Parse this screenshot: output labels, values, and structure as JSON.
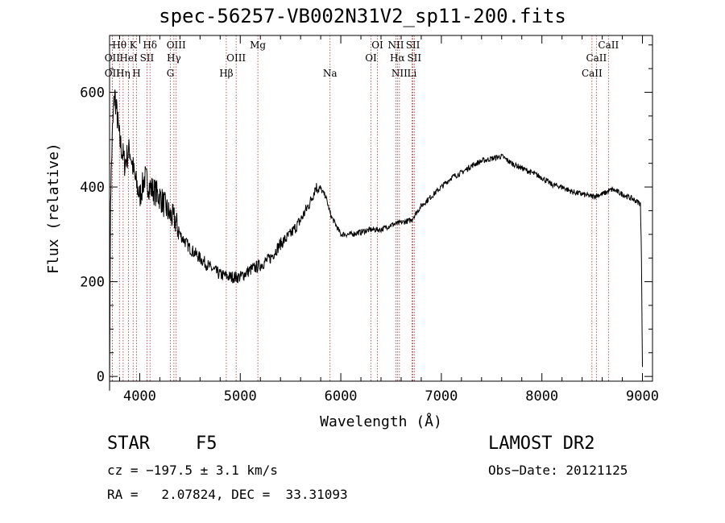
{
  "chart_data": {
    "type": "line",
    "title": "spec-56257-VB002N31V2_sp11-200.fits",
    "xlabel": "Wavelength (Å)",
    "ylabel": "Flux (relative)",
    "xlim": [
      3700,
      9100
    ],
    "ylim": [
      -10,
      720
    ],
    "xticks": [
      4000,
      5000,
      6000,
      7000,
      8000,
      9000
    ],
    "yticks": [
      0,
      200,
      400,
      600
    ],
    "x_minor_step": 200,
    "y_minor_step": 50,
    "grid": false,
    "series": [
      {
        "name": "flux",
        "x": [
          3700,
          3705,
          3710,
          3720,
          3730,
          3740,
          3750,
          3760,
          3770,
          3780,
          3790,
          3800,
          3850,
          3900,
          3950,
          4000,
          4050,
          4100,
          4150,
          4200,
          4250,
          4300,
          4350,
          4400,
          4500,
          4600,
          4700,
          4800,
          4900,
          5000,
          5100,
          5200,
          5300,
          5400,
          5500,
          5600,
          5700,
          5750,
          5800,
          5850,
          5900,
          5950,
          6000,
          6100,
          6200,
          6300,
          6400,
          6500,
          6600,
          6700,
          6800,
          6900,
          7000,
          7100,
          7200,
          7300,
          7400,
          7500,
          7600,
          7700,
          7800,
          7900,
          8000,
          8100,
          8200,
          8300,
          8400,
          8500,
          8600,
          8700,
          8800,
          8900,
          8980,
          8990,
          9000
        ],
        "y": [
          0,
          150,
          380,
          450,
          520,
          560,
          600,
          580,
          560,
          540,
          520,
          500,
          450,
          480,
          420,
          380,
          420,
          400,
          390,
          380,
          360,
          340,
          330,
          300,
          270,
          250,
          230,
          215,
          210,
          210,
          225,
          235,
          250,
          280,
          300,
          330,
          370,
          400,
          395,
          380,
          340,
          320,
          300,
          300,
          305,
          310,
          310,
          320,
          325,
          330,
          360,
          380,
          400,
          420,
          430,
          445,
          455,
          460,
          465,
          450,
          440,
          430,
          420,
          405,
          400,
          390,
          385,
          380,
          385,
          395,
          385,
          375,
          365,
          250,
          20
        ],
        "noise": 12
      }
    ],
    "lines_ref": [
      {
        "label": "Hθ",
        "x": 3798,
        "row": 1
      },
      {
        "label": "OII",
        "x": 3727,
        "row": 2
      },
      {
        "label": "OII",
        "x": 3727,
        "row": 3
      },
      {
        "label": "Hη",
        "x": 3835,
        "row": 3
      },
      {
        "label": "HeI",
        "x": 3889,
        "row": 2
      },
      {
        "label": "K",
        "x": 3934,
        "row": 1
      },
      {
        "label": "H",
        "x": 3968,
        "row": 3
      },
      {
        "label": "SII",
        "x": 4072,
        "row": 2
      },
      {
        "label": "Hδ",
        "x": 4102,
        "row": 1
      },
      {
        "label": "OIII",
        "x": 4363,
        "row": 1
      },
      {
        "label": "Hγ",
        "x": 4340,
        "row": 2
      },
      {
        "label": "G",
        "x": 4305,
        "row": 3
      },
      {
        "label": "Hβ",
        "x": 4861,
        "row": 3
      },
      {
        "label": "OIII",
        "x": 4959,
        "row": 2
      },
      {
        "label": "Mg",
        "x": 5175,
        "row": 1
      },
      {
        "label": "Na",
        "x": 5893,
        "row": 3
      },
      {
        "label": "OI",
        "x": 6364,
        "row": 1
      },
      {
        "label": "OI",
        "x": 6300,
        "row": 2
      },
      {
        "label": "NII",
        "x": 6548,
        "row": 1
      },
      {
        "label": "NII",
        "x": 6583,
        "row": 3
      },
      {
        "label": "Hα",
        "x": 6563,
        "row": 2
      },
      {
        "label": "SII",
        "x": 6717,
        "row": 1
      },
      {
        "label": "SII",
        "x": 6731,
        "row": 2
      },
      {
        "label": "Li",
        "x": 6708,
        "row": 3
      },
      {
        "label": "CaII",
        "x": 8662,
        "row": 1
      },
      {
        "label": "CaII",
        "x": 8542,
        "row": 2
      },
      {
        "label": "CaII",
        "x": 8498,
        "row": 3
      }
    ]
  },
  "info": {
    "object_class": "STAR",
    "subclass": "F5",
    "survey": "LAMOST DR2",
    "redshift": "cz = −197.5 ± 3.1 km/s",
    "obs_date": "Obs−Date: 20121125",
    "coords": "RA =   2.07824, DEC =  33.31093"
  },
  "colors": {
    "spectrum": "#000000",
    "ref_line": "#b03030",
    "axis": "#000000"
  }
}
